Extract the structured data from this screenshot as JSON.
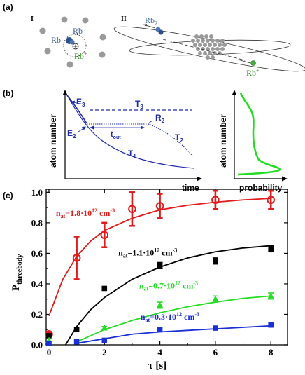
{
  "panels": {
    "a_label": "(a)",
    "b_label": "(b)",
    "c_label": "(c)"
  },
  "panel_a": {
    "left_roman": "I",
    "right_roman": "II",
    "left_rb_dark": "Rb",
    "left_rb": "Rb",
    "left_ion": "Rb",
    "left_ion_sup": "+",
    "right_rb2": "Rb",
    "right_rb2_sub": "2",
    "right_ion": "Rb",
    "right_ion_sup": "+"
  },
  "panel_b": {
    "ylabel_left": "atom number",
    "xlabel_left": "time",
    "ylabel_right": "atom number",
    "xlabel_right": "probability",
    "E3": "E",
    "E3_sub": "3",
    "E2": "E",
    "E2_sub": "2",
    "T3": "T",
    "T3_sub": "3",
    "T2": "T",
    "T2_sub": "2",
    "T1": "T",
    "T1_sub": "1",
    "R2": "R",
    "R2_sub": "2",
    "tout": "t",
    "tout_sub": "out"
  },
  "colors": {
    "red": "#e01b1b",
    "black": "#000000",
    "green": "#22dd22",
    "blue": "#1a2fd6",
    "dark_blue_line": "#1f2aa8"
  },
  "chart_data": {
    "type": "scatter",
    "ylabel": "P",
    "ylabel_sub": "threebody",
    "xlabel": "τ [s]",
    "xlim": [
      -0.1,
      8.6
    ],
    "ylim": [
      0.0,
      1.02
    ],
    "xticks": [
      "0",
      "2",
      "4",
      "6",
      "8"
    ],
    "yticks": [
      "0.0",
      "0.2",
      "0.4",
      "0.6",
      "0.8",
      "1.0"
    ],
    "series": [
      {
        "name": "n",
        "name_sub": "at",
        "name_rest": "=1.8·10",
        "name_exp": "12",
        "name_unit": " cm",
        "name_unit_exp": "-3",
        "color": "#e01b1b",
        "marker": "circle-open",
        "x": [
          0,
          1,
          2,
          3,
          4,
          6,
          8
        ],
        "y": [
          0.07,
          0.57,
          0.72,
          0.89,
          0.91,
          0.95,
          0.95
        ],
        "yerr": [
          0.01,
          0.14,
          0.08,
          0.11,
          0.08,
          0.06,
          0.06
        ],
        "fit": [
          [
            0,
            0.19
          ],
          [
            0.5,
            0.43
          ],
          [
            1,
            0.58
          ],
          [
            1.5,
            0.68
          ],
          [
            2,
            0.75
          ],
          [
            3,
            0.83
          ],
          [
            4,
            0.885
          ],
          [
            5,
            0.915
          ],
          [
            6,
            0.935
          ],
          [
            7,
            0.95
          ],
          [
            8,
            0.96
          ]
        ]
      },
      {
        "name": "n",
        "name_sub": "at",
        "name_rest": "=1.1·10",
        "name_exp": "12",
        "name_unit": " cm",
        "name_unit_exp": "-3",
        "color": "#000000",
        "marker": "square",
        "x": [
          0,
          1,
          2,
          4,
          6,
          8
        ],
        "y": [
          0.06,
          0.1,
          0.37,
          0.52,
          0.55,
          0.63
        ],
        "yerr": [
          0.0,
          0.0,
          0.0,
          0.02,
          0.02,
          0.02
        ],
        "fit": [
          [
            0.6,
            0.0
          ],
          [
            1,
            0.12
          ],
          [
            1.5,
            0.23
          ],
          [
            2,
            0.31
          ],
          [
            3,
            0.43
          ],
          [
            4,
            0.51
          ],
          [
            5,
            0.57
          ],
          [
            6,
            0.61
          ],
          [
            7,
            0.635
          ],
          [
            8,
            0.65
          ]
        ]
      },
      {
        "name": "n",
        "name_sub": "at",
        "name_rest": "=0.7·10",
        "name_exp": "12",
        "name_unit": " cm",
        "name_unit_exp": "-3",
        "color": "#22dd22",
        "marker": "triangle",
        "x": [
          0,
          2,
          4,
          6,
          8
        ],
        "y": [
          0.03,
          0.11,
          0.26,
          0.3,
          0.32
        ],
        "yerr": [
          0.0,
          0.01,
          0.02,
          0.02,
          0.02
        ],
        "fit": [
          [
            1,
            0.02
          ],
          [
            1.5,
            0.06
          ],
          [
            2,
            0.1
          ],
          [
            3,
            0.16
          ],
          [
            4,
            0.21
          ],
          [
            5,
            0.25
          ],
          [
            6,
            0.28
          ],
          [
            7,
            0.305
          ],
          [
            8,
            0.32
          ]
        ]
      },
      {
        "name": "n",
        "name_sub": "at",
        "name_rest": "=0.3·10",
        "name_exp": "12",
        "name_unit": " cm",
        "name_unit_exp": "-3",
        "color": "#1a2fd6",
        "marker": "square",
        "x": [
          0,
          1,
          2,
          4,
          6,
          8
        ],
        "y": [
          0.01,
          0.02,
          0.03,
          0.1,
          0.11,
          0.13
        ],
        "yerr": [
          0.0,
          0.0,
          0.0,
          0.0,
          0.0,
          0.0
        ],
        "fit": [
          [
            1,
            0.01
          ],
          [
            2,
            0.04
          ],
          [
            3,
            0.07
          ],
          [
            4,
            0.085
          ],
          [
            5,
            0.095
          ],
          [
            6,
            0.105
          ],
          [
            7,
            0.115
          ],
          [
            8,
            0.125
          ]
        ]
      }
    ]
  }
}
